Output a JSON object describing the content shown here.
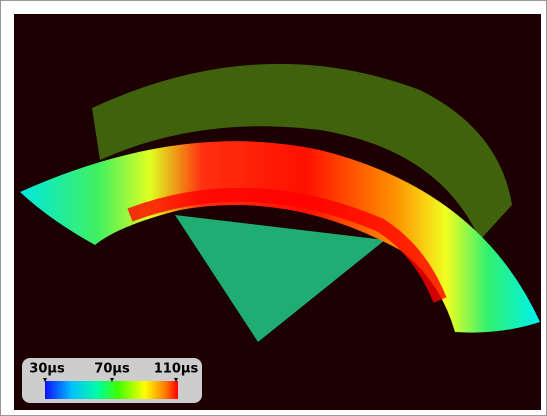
{
  "colorbar": {
    "labels": [
      "30µs",
      "70µs",
      "110µs"
    ]
  }
}
